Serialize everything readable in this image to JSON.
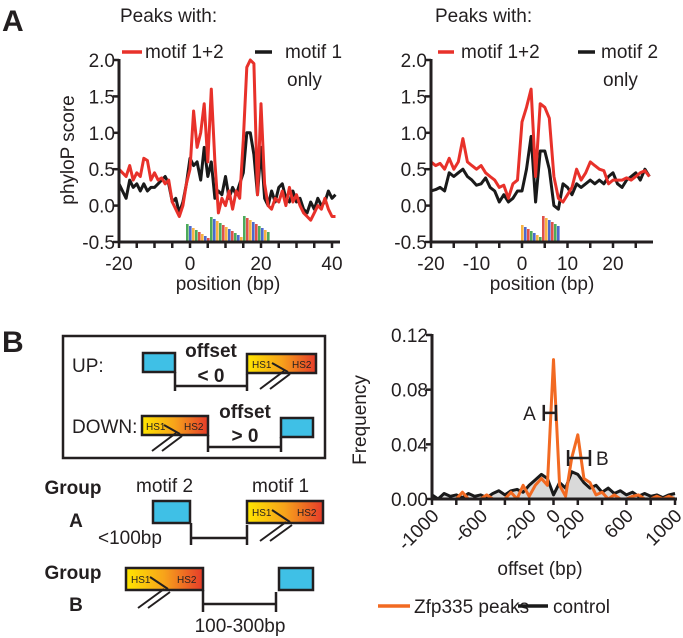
{
  "panel_labels": {
    "a": "A",
    "b": "B"
  },
  "colors": {
    "red": "#e8312a",
    "black": "#1a1a1a",
    "orange": "#f26a22",
    "cyan": "#3fc0e6",
    "grad_start": "#ffe600",
    "grad_end": "#e63b2a",
    "gray_fill": "#cfcfcf"
  },
  "chart_data": [
    {
      "type": "line",
      "id": "a1",
      "title": "Peaks with:",
      "xlabel": "position (bp)",
      "ylabel": "phyloP score",
      "xlim": [
        -20,
        42
      ],
      "ylim": [
        -0.5,
        2.0
      ],
      "xticks": [
        -20,
        0,
        20,
        40
      ],
      "xticks_labels": [
        "-20",
        "0",
        "20",
        "40"
      ],
      "yticks": [
        -0.5,
        0.0,
        0.5,
        1.0,
        1.5,
        2.0
      ],
      "yticks_labels": [
        "-0.5",
        "0.0",
        "0.5",
        "1.0",
        "1.5",
        "2.0"
      ],
      "legend": {
        "placement": "top",
        "entries": [
          "motif 1+2",
          "motif 1",
          "only"
        ]
      },
      "x_start": -20,
      "series": [
        {
          "name": "motif 1+2",
          "color": "#e8312a",
          "values": [
            0.5,
            0.45,
            0.4,
            0.55,
            0.35,
            0.45,
            0.4,
            0.65,
            0.62,
            0.35,
            0.45,
            0.35,
            0.38,
            0.3,
            0.35,
            0.05,
            -0.05,
            -0.15,
            0.0,
            0.3,
            0.5,
            1.3,
            0.8,
            1.0,
            1.4,
            0.6,
            1.6,
            0.6,
            -0.1,
            0.1,
            0.0,
            0.2,
            -0.05,
            0.2,
            0.1,
            0.9,
            1.9,
            2.0,
            1.95,
            0.15,
            1.4,
            0.3,
            0.0,
            -0.05,
            0.1,
            0.05,
            0.2,
            0.0,
            0.25,
            0.05,
            0.15,
            0.0,
            -0.1,
            -0.15,
            -0.2,
            -0.1,
            0.0,
            -0.05,
            0.1,
            -0.05,
            -0.15,
            -0.15
          ]
        },
        {
          "name": "motif 1 only",
          "color": "#1a1a1a",
          "values": [
            0.3,
            0.2,
            0.1,
            0.35,
            0.25,
            0.3,
            0.2,
            0.3,
            0.2,
            0.25,
            0.25,
            0.3,
            0.35,
            0.4,
            0.3,
            0.05,
            0.1,
            -0.1,
            0.05,
            0.3,
            0.65,
            0.55,
            0.6,
            0.35,
            0.8,
            0.4,
            0.6,
            0.1,
            0.2,
            0.15,
            0.4,
            0.1,
            0.25,
            0.15,
            0.3,
            0.45,
            1.0,
            1.0,
            0.7,
            0.15,
            0.8,
            0.1,
            0.0,
            0.2,
            0.05,
            0.25,
            0.3,
            0.1,
            0.05,
            0.2,
            0.05,
            0.1,
            -0.05,
            -0.1,
            0.05,
            -0.05,
            0.1,
            0.0,
            0.05,
            0.2,
            0.1,
            0.15
          ]
        }
      ]
    },
    {
      "type": "line",
      "id": "a2",
      "title": "Peaks with:",
      "xlabel": "position (bp)",
      "ylabel": "",
      "xlim": [
        -20,
        28.5
      ],
      "ylim": [
        -0.5,
        2.0
      ],
      "xticks": [
        -20,
        -10,
        0,
        10,
        20
      ],
      "xticks_labels": [
        "-20",
        "-10",
        "0",
        "10",
        "20"
      ],
      "yticks": [
        -0.5,
        0.0,
        0.5,
        1.0,
        1.5,
        2.0
      ],
      "yticks_labels": [
        "-0.5",
        "0.0",
        "0.5",
        "1.0",
        "1.5",
        "2.0"
      ],
      "legend": {
        "placement": "top",
        "entries": [
          "motif 1+2",
          "motif 2",
          "only"
        ]
      },
      "x_start": -20,
      "series": [
        {
          "name": "motif 1+2",
          "color": "#e8312a",
          "values": [
            0.6,
            0.55,
            0.58,
            0.5,
            0.65,
            0.5,
            0.6,
            0.92,
            0.6,
            0.55,
            0.5,
            0.55,
            0.45,
            0.4,
            0.35,
            0.25,
            0.28,
            0.1,
            0.3,
            0.35,
            1.15,
            1.35,
            1.6,
            0.4,
            1.4,
            1.35,
            1.2,
            0.4,
            0.1,
            0.05,
            0.15,
            0.25,
            0.5,
            0.35,
            0.45,
            0.6,
            0.55,
            0.5,
            0.48,
            0.3,
            0.35,
            0.35,
            0.35,
            0.38,
            0.35,
            0.4,
            0.45,
            0.48,
            0.4
          ]
        },
        {
          "name": "motif 2 only",
          "color": "#1a1a1a",
          "values": [
            0.2,
            0.22,
            0.25,
            0.2,
            0.45,
            0.4,
            0.45,
            0.5,
            0.4,
            0.35,
            0.28,
            0.3,
            0.38,
            0.25,
            0.2,
            0.05,
            0.15,
            0.05,
            0.1,
            0.2,
            0.2,
            0.5,
            0.95,
            0.05,
            0.75,
            0.75,
            0.5,
            0.0,
            -0.05,
            0.3,
            0.25,
            0.15,
            0.3,
            0.25,
            0.3,
            0.35,
            0.3,
            0.35,
            0.3,
            0.4,
            0.45,
            0.3,
            0.25,
            0.35,
            0.4,
            0.45,
            0.35,
            0.5,
            0.4
          ]
        }
      ]
    },
    {
      "type": "line",
      "id": "b",
      "title": "",
      "xlabel": "offset (bp)",
      "ylabel": "Frequency",
      "xlim": [
        -1000,
        1000
      ],
      "ylim": [
        0,
        0.12
      ],
      "xticks": [
        -1000,
        -600,
        -200,
        0,
        200,
        600,
        1000
      ],
      "xticks_labels": [
        "-1000",
        "-600",
        "-200",
        "0",
        "200",
        "600",
        "1000"
      ],
      "yticks": [
        0.0,
        0.04,
        0.08,
        0.12
      ],
      "yticks_labels": [
        "0.00",
        "0.04",
        "0.08",
        "0.12"
      ],
      "legend": {
        "placement": "bottom",
        "entries": [
          "Zfp335 peaks",
          "control"
        ]
      },
      "x_start": -1000,
      "x_step": 50,
      "series": [
        {
          "name": "Zfp335 peaks",
          "color": "#f26a22",
          "values": [
            0,
            0,
            0,
            0,
            0,
            0.005,
            0,
            0,
            0,
            0.003,
            0,
            0,
            0,
            0.005,
            0,
            0.01,
            0.002,
            0.01,
            0.015,
            0.01,
            0.102,
            0.01,
            0.002,
            0.03,
            0.047,
            0.015,
            0.012,
            0.003,
            0.005,
            0,
            0.003,
            0,
            0,
            0.002,
            0.003,
            0,
            0,
            0.002,
            0,
            0.002,
            0
          ]
        },
        {
          "name": "control",
          "color": "#1a1a1a",
          "values": [
            0.003,
            0,
            0.004,
            0.002,
            0.003,
            0.001,
            0.004,
            0.002,
            0.003,
            0.001,
            0.004,
            0.006,
            0.003,
            0.006,
            0.007,
            0.005,
            0.01,
            0.014,
            0.018,
            0.015,
            0.003,
            0.012,
            0.008,
            0.02,
            0.018,
            0.012,
            0.008,
            0.01,
            0.005,
            0.008,
            0.004,
            0.006,
            0.003,
            0.005,
            0.002,
            0.004,
            0.002,
            0.003,
            0.001,
            0.003,
            0.004
          ]
        }
      ],
      "annotations": [
        {
          "label": "A",
          "range": [
            -80,
            20
          ],
          "y": 0.063
        },
        {
          "label": "B",
          "range": [
            120,
            300
          ],
          "y": 0.03
        }
      ]
    }
  ],
  "diagram": {
    "up_label": "UP:",
    "down_label": "DOWN:",
    "offset_word": "offset",
    "offset_neg": "< 0",
    "offset_pos": "> 0",
    "hs1": "HS1",
    "hs2": "HS2",
    "group_word": "Group",
    "group_a": "A",
    "group_b": "B",
    "motif2": "motif 2",
    "motif1": "motif 1",
    "dist_a": "<100bp",
    "dist_b": "100-300bp"
  }
}
